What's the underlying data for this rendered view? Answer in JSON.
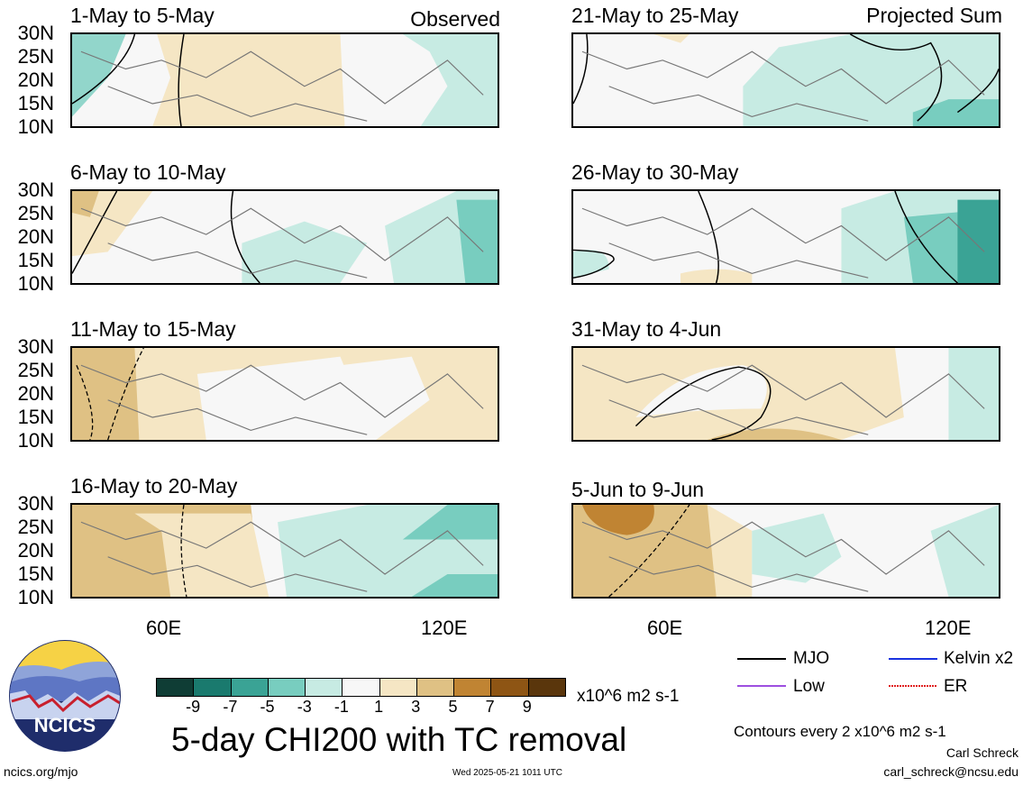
{
  "tags": {
    "left": "Observed",
    "right": "Projected Sum"
  },
  "panels_left": [
    {
      "period": "1-May to 5-May"
    },
    {
      "period": "6-May to 10-May"
    },
    {
      "period": "11-May to 15-May"
    },
    {
      "period": "16-May to 20-May"
    }
  ],
  "panels_right": [
    {
      "period": "21-May to 25-May"
    },
    {
      "period": "26-May to 30-May"
    },
    {
      "period": "31-May to 4-Jun"
    },
    {
      "period": "5-Jun to 9-Jun"
    }
  ],
  "lat_labels": [
    "30N",
    "25N",
    "20N",
    "15N",
    "10N"
  ],
  "lon_labels": [
    "60E",
    "120E"
  ],
  "colorbar": {
    "colors": [
      "#0f3d35",
      "#1a7a6e",
      "#3aa395",
      "#78cdbf",
      "#c7ebe3",
      "#f7f7f7",
      "#f5e6c4",
      "#dfc184",
      "#c08433",
      "#8e5514",
      "#5a360c"
    ],
    "labels": [
      "-9",
      "-7",
      "-5",
      "-3",
      "-1",
      "1",
      "3",
      "5",
      "7",
      "9"
    ],
    "units": "x10^6 m2 s-1"
  },
  "legend": {
    "mjo": "MJO",
    "kelvin": "Kelvin x2",
    "low": "Low",
    "er": "ER",
    "contours": "Contours every 2 x10^6 m2 s-1"
  },
  "title": "5-day CHI200 with TC removal",
  "logo_text": "NCICS",
  "footer": {
    "url": "ncics.org/mjo",
    "timestamp": "Wed 2025-05-21 1011 UTC",
    "author": "Carl Schreck",
    "email": "carl_schreck@ncsu.edu"
  }
}
